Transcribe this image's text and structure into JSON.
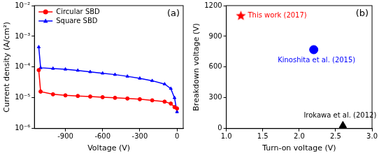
{
  "chart_data": [
    {
      "type": "line",
      "title": "(a)",
      "xlabel": "Voltage (V)",
      "ylabel": "Current density (A/cm²)",
      "log": "y",
      "grid": false,
      "legend": "upper left",
      "xlim": [
        -1150,
        50
      ],
      "xticks": [
        -900,
        -600,
        -300,
        0
      ],
      "ylim": [
        1e-06,
        0.01
      ],
      "yticks": [
        {
          "value": 1e-06,
          "label": "10⁻⁶"
        },
        {
          "value": 1e-05,
          "label": "10⁻⁵"
        },
        {
          "value": 0.0001,
          "label": "10⁻⁴"
        },
        {
          "value": 0.001,
          "label": "10⁻³"
        },
        {
          "value": 0.01,
          "label": "10⁻²"
        }
      ],
      "x": [
        -1115,
        -1100,
        -1000,
        -900,
        -800,
        -700,
        -600,
        -500,
        -400,
        -300,
        -200,
        -100,
        -50,
        -20,
        0
      ],
      "series": [
        {
          "name": "Circular SBD",
          "color": "#ff0000",
          "marker": "circle",
          "line_style": "solid",
          "values": [
            8e-05,
            1.6e-05,
            1.3e-05,
            1.2e-05,
            1.15e-05,
            1.1e-05,
            1.05e-05,
            1e-05,
            9.5e-06,
            9e-06,
            8.3e-06,
            7.5e-06,
            6.5e-06,
            5e-06,
            4.5e-06
          ]
        },
        {
          "name": "Square SBD",
          "color": "#0000ff",
          "marker": "triangle",
          "line_style": "solid",
          "values": [
            0.00045,
            9.5e-05,
            9e-05,
            8.5e-05,
            7.8e-05,
            7e-05,
            6.3e-05,
            5.7e-05,
            5e-05,
            4.3e-05,
            3.6e-05,
            2.8e-05,
            2e-05,
            1e-05,
            3.5e-06
          ]
        }
      ]
    },
    {
      "type": "scatter",
      "title": "(b)",
      "xlabel": "Turn-on voltage (V)",
      "ylabel": "Breakdown voltage (V)",
      "grid": false,
      "xlim": [
        1.0,
        3.0
      ],
      "xticks": [
        {
          "value": 1,
          "label": "1.0"
        },
        {
          "value": 1.5,
          "label": "1.5"
        },
        {
          "value": 2,
          "label": "2.0"
        },
        {
          "value": 2.5,
          "label": "2.5"
        },
        {
          "value": 3,
          "label": "3.0"
        }
      ],
      "ylim": [
        0,
        1200
      ],
      "yticks": [
        0,
        300,
        600,
        900,
        1200
      ],
      "series": [
        {
          "name": "This work (2017)",
          "color": "#ff0000",
          "marker": "star",
          "x": [
            1.2
          ],
          "values": [
            1100
          ]
        },
        {
          "name": "Kinoshita et al. (2015)",
          "color": "#0000ff",
          "marker": "circle",
          "x": [
            2.2
          ],
          "values": [
            770
          ]
        },
        {
          "name": "Irokawa et al. (2012)",
          "color": "#000000",
          "marker": "triangle",
          "x": [
            2.6
          ],
          "values": [
            30
          ]
        }
      ]
    }
  ]
}
